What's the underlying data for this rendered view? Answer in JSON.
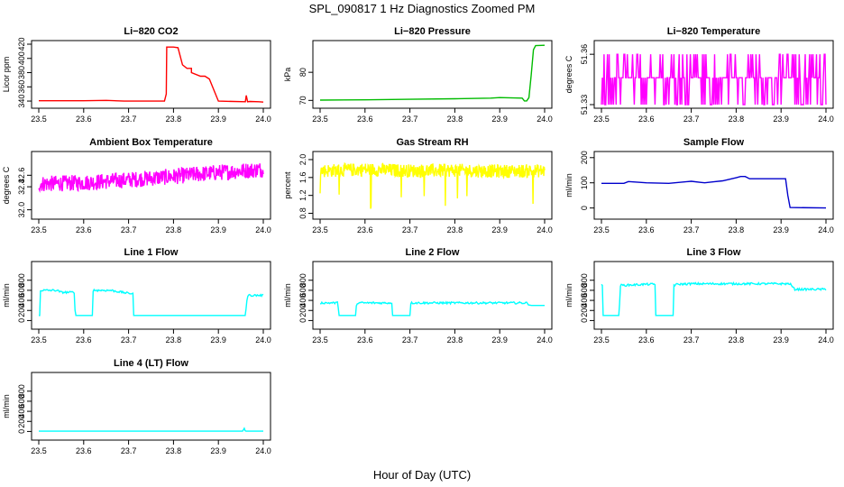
{
  "figure": {
    "title": "SPL_090817  1 Hz Diagnostics Zoomed PM",
    "xlabel": "Hour of Day (UTC)"
  },
  "chart_data": [
    {
      "type": "line",
      "title": "Li−820 CO2",
      "ylabel": "Licor ppm",
      "color": "#ff0000",
      "xlim": [
        23.5,
        24.0
      ],
      "ylim": [
        335,
        420
      ],
      "xticks": [
        "23.5",
        "23.6",
        "23.7",
        "23.8",
        "23.9",
        "24.0"
      ],
      "yticks": [
        "340",
        "360",
        "380",
        "400",
        "420"
      ],
      "series": [
        {
          "x": [
            23.5,
            23.6,
            23.65,
            23.69,
            23.7,
            23.705,
            23.77,
            23.78,
            23.784,
            23.785,
            23.789,
            23.79,
            23.8,
            23.81,
            23.82,
            23.83,
            23.84,
            23.84,
            23.86,
            23.87,
            23.88,
            23.9,
            23.96,
            23.962,
            23.965,
            23.97,
            23.99,
            24.0
          ],
          "y": [
            340.5,
            340.5,
            341,
            340,
            340,
            340,
            340,
            340,
            350,
            416,
            416,
            416,
            416,
            415,
            391,
            386,
            386,
            380,
            375,
            375,
            371,
            340,
            339,
            348,
            339,
            339.5,
            339,
            338.5
          ]
        }
      ]
    },
    {
      "type": "line",
      "title": "Li−820 Pressure",
      "ylabel": "kPa",
      "color": "#00bb00",
      "xlim": [
        23.5,
        24.0
      ],
      "ylim": [
        68.5,
        90
      ],
      "xticks": [
        "23.5",
        "23.6",
        "23.7",
        "23.8",
        "23.9",
        "24.0"
      ],
      "yticks": [
        "70",
        "80"
      ],
      "series": [
        {
          "x": [
            23.5,
            23.6,
            23.7,
            23.8,
            23.88,
            23.9,
            23.95,
            23.955,
            23.96,
            23.965,
            23.97,
            23.975,
            23.98,
            24.0
          ],
          "y": [
            70.1,
            70.2,
            70.4,
            70.6,
            70.8,
            71,
            70.8,
            69.8,
            69.8,
            71,
            79,
            88,
            89.5,
            89.6
          ]
        }
      ]
    },
    {
      "type": "line",
      "title": "Li−820 Temperature",
      "ylabel": "degrees C",
      "color": "#ff00ff",
      "xlim": [
        23.5,
        24.0
      ],
      "ylim": [
        51.33,
        51.366
      ],
      "xticks": [
        "23.5",
        "23.6",
        "23.7",
        "23.8",
        "23.9",
        "24.0"
      ],
      "yticks": [
        "51.33",
        "51.36"
      ],
      "pattern": "alternates between 51.33, 51.346 and 51.36 (stepwise noise)",
      "series": [
        {
          "x": [
            23.5,
            24.0
          ],
          "y": [
            51.346,
            51.346
          ]
        }
      ]
    },
    {
      "type": "line",
      "title": "Ambient Box Temperature",
      "ylabel": "degrees C",
      "color": "#ff00ff",
      "xlim": [
        23.5,
        24.0
      ],
      "ylim": [
        31.9,
        32.95
      ],
      "xticks": [
        "23.5",
        "23.6",
        "23.7",
        "23.8",
        "23.9",
        "24.0"
      ],
      "yticks": [
        "32.0",
        "32.4",
        "32.6"
      ],
      "series": [
        {
          "x": [
            23.5,
            23.6,
            23.7,
            23.8,
            23.9,
            24.0
          ],
          "y": [
            32.45,
            32.47,
            32.52,
            32.58,
            32.65,
            32.7
          ]
        }
      ]
    },
    {
      "type": "line",
      "title": "Gas Stream RH",
      "ylabel": "percent",
      "color": "#ffff00",
      "xlim": [
        23.5,
        24.0
      ],
      "ylim": [
        0.75,
        2.1
      ],
      "xticks": [
        "23.5",
        "23.6",
        "23.7",
        "23.8",
        "23.9",
        "24.0"
      ],
      "yticks": [
        "0.8",
        "1.2",
        "1.6",
        "2.0"
      ],
      "series": [
        {
          "x": [
            23.5,
            23.6,
            23.7,
            23.8,
            23.9,
            24.0
          ],
          "y": [
            1.75,
            1.78,
            1.75,
            1.76,
            1.74,
            1.75
          ]
        }
      ]
    },
    {
      "type": "line",
      "title": "Sample Flow",
      "ylabel": "ml/min",
      "color": "#0000cc",
      "xlim": [
        23.5,
        24.0
      ],
      "ylim": [
        -30,
        210
      ],
      "xticks": [
        "23.5",
        "23.6",
        "23.7",
        "23.8",
        "23.9",
        "24.0"
      ],
      "yticks": [
        "0",
        "100",
        "200"
      ],
      "series": [
        {
          "x": [
            23.5,
            23.55,
            23.56,
            23.6,
            23.65,
            23.7,
            23.72,
            23.73,
            23.75,
            23.77,
            23.8,
            23.81,
            23.82,
            23.83,
            23.91,
            23.915,
            23.92,
            24.0
          ],
          "y": [
            98,
            98,
            105,
            100,
            98,
            106,
            102,
            100,
            104,
            108,
            120,
            125,
            125,
            116,
            116,
            50,
            2,
            0
          ]
        }
      ]
    },
    {
      "type": "line",
      "title": "Line 1 Flow",
      "ylabel": "ml/min",
      "color": "#00ffff",
      "xlim": [
        23.5,
        24.0
      ],
      "ylim": [
        -100,
        1100
      ],
      "xticks": [
        "23.5",
        "23.6",
        "23.7",
        "23.8",
        "23.9",
        "24.0"
      ],
      "yticks": [
        "0",
        "200",
        "400",
        "600",
        "800"
      ],
      "series": [
        {
          "x": [
            23.5,
            23.502,
            23.503,
            23.54,
            23.55,
            23.58,
            23.581,
            23.62,
            23.621,
            23.66,
            23.7,
            23.71,
            23.711,
            23.95,
            23.96,
            23.965,
            23.97,
            24.0
          ],
          "y": [
            100,
            100,
            600,
            600,
            560,
            560,
            100,
            100,
            600,
            600,
            540,
            540,
            100,
            100,
            100,
            500,
            500,
            500
          ]
        }
      ]
    },
    {
      "type": "line",
      "title": "Line 2 Flow",
      "ylabel": "ml/min",
      "color": "#00ffff",
      "xlim": [
        23.5,
        24.0
      ],
      "ylim": [
        -100,
        1100
      ],
      "xticks": [
        "23.5",
        "23.6",
        "23.7",
        "23.8",
        "23.9",
        "24.0"
      ],
      "yticks": [
        "0",
        "200",
        "400",
        "600",
        "800"
      ],
      "series": [
        {
          "x": [
            23.5,
            23.54,
            23.541,
            23.58,
            23.581,
            23.66,
            23.661,
            23.7,
            23.701,
            23.96,
            23.97,
            24.0
          ],
          "y": [
            350,
            350,
            100,
            100,
            350,
            350,
            100,
            100,
            350,
            350,
            300,
            300
          ]
        }
      ]
    },
    {
      "type": "line",
      "title": "Line 3 Flow",
      "ylabel": "ml/min",
      "color": "#00ffff",
      "xlim": [
        23.5,
        24.0
      ],
      "ylim": [
        -100,
        1100
      ],
      "xticks": [
        "23.5",
        "23.6",
        "23.7",
        "23.8",
        "23.9",
        "24.0"
      ],
      "yticks": [
        "0",
        "200",
        "400",
        "600",
        "800"
      ],
      "series": [
        {
          "x": [
            23.5,
            23.502,
            23.503,
            23.504,
            23.54,
            23.541,
            23.545,
            23.55,
            23.6,
            23.62,
            23.621,
            23.66,
            23.661,
            23.67,
            23.7,
            23.92,
            23.93,
            24.0
          ],
          "y": [
            700,
            700,
            100,
            100,
            100,
            700,
            700,
            700,
            720,
            720,
            100,
            100,
            700,
            720,
            730,
            730,
            620,
            620
          ]
        }
      ]
    },
    {
      "type": "line",
      "title": "Line 4 (LT) Flow",
      "ylabel": "ml/min",
      "color": "#00ffff",
      "xlim": [
        23.5,
        24.0
      ],
      "ylim": [
        -100,
        1100
      ],
      "xticks": [
        "23.5",
        "23.6",
        "23.7",
        "23.8",
        "23.9",
        "24.0"
      ],
      "yticks": [
        "0",
        "200",
        "400",
        "600",
        "800"
      ],
      "series": [
        {
          "x": [
            23.5,
            23.6,
            23.7,
            23.8,
            23.9,
            23.955,
            23.957,
            23.96,
            23.97,
            24.0
          ],
          "y": [
            5,
            5,
            5,
            5,
            5,
            5,
            80,
            5,
            5,
            5
          ]
        }
      ]
    }
  ]
}
